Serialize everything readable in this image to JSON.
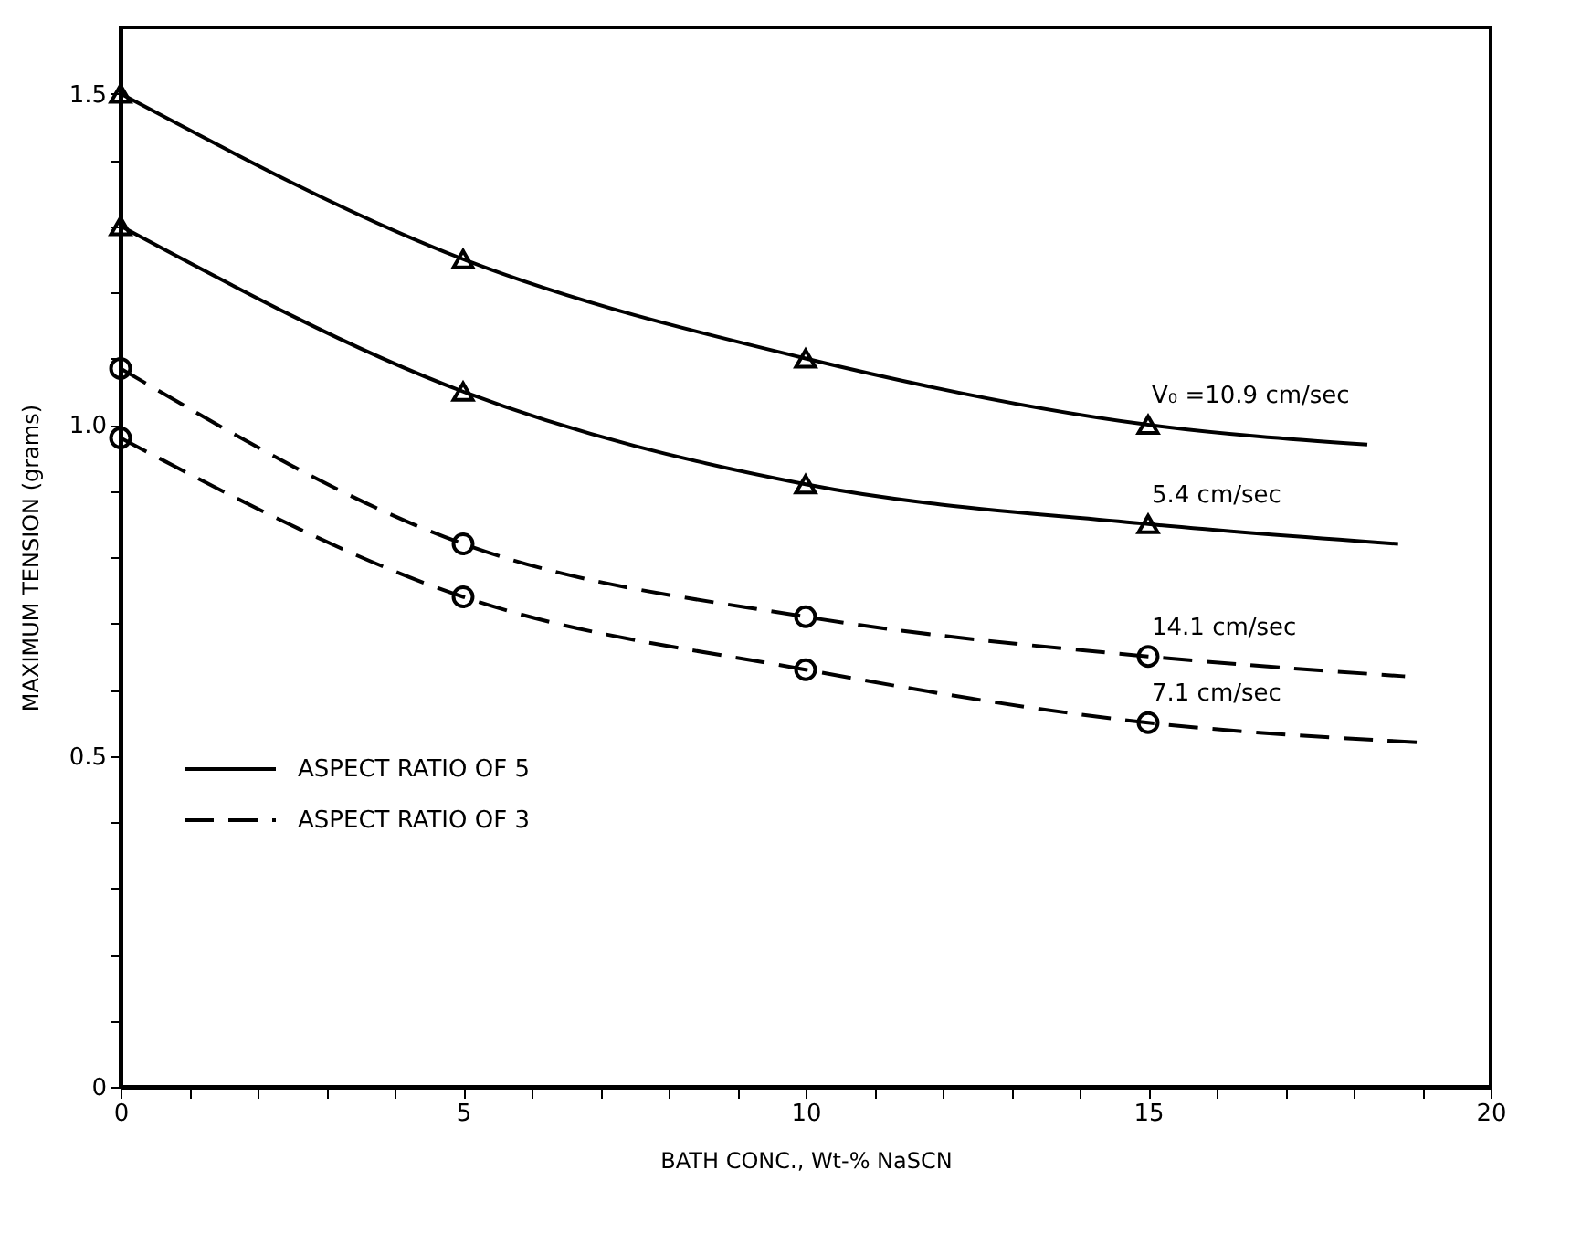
{
  "chart_data": {
    "type": "line",
    "xlabel": "BATH CONC., Wt-% NaSCN",
    "ylabel": "MAXIMUM TENSION (grams)",
    "xlim": [
      0,
      20
    ],
    "ylim": [
      0,
      1.6
    ],
    "xticks": [
      0,
      {
        "value": 1,
        "label": null
      },
      {
        "value": 2,
        "label": null
      },
      {
        "value": 3,
        "label": null
      },
      {
        "value": 4,
        "label": null
      },
      5,
      {
        "value": 6,
        "label": null
      },
      {
        "value": 7,
        "label": null
      },
      {
        "value": 8,
        "label": null
      },
      {
        "value": 9,
        "label": null
      },
      10,
      {
        "value": 11,
        "label": null
      },
      {
        "value": 12,
        "label": null
      },
      {
        "value": 13,
        "label": null
      },
      {
        "value": 14,
        "label": null
      },
      15,
      {
        "value": 16,
        "label": null
      },
      {
        "value": 17,
        "label": null
      },
      {
        "value": 18,
        "label": null
      },
      {
        "value": 19,
        "label": null
      },
      20
    ],
    "yticks": [
      0,
      {
        "value": 0.1,
        "label": null
      },
      {
        "value": 0.2,
        "label": null
      },
      {
        "value": 0.3,
        "label": null
      },
      {
        "value": 0.4,
        "label": null
      },
      0.5,
      {
        "value": 0.6,
        "label": null
      },
      {
        "value": 0.7,
        "label": null
      },
      {
        "value": 0.8,
        "label": null
      },
      {
        "value": 0.9,
        "label": null
      },
      {
        "value": 1.0,
        "label": "1.0"
      },
      {
        "value": 1.1,
        "label": null
      },
      {
        "value": 1.2,
        "label": null
      },
      {
        "value": 1.3,
        "label": null
      },
      {
        "value": 1.4,
        "label": null
      },
      1.5
    ],
    "grid": false,
    "legend": "left",
    "series": [
      {
        "name": "ASPECT RATIO OF 5",
        "line_style": "solid",
        "color": "#000000",
        "x": [
          0,
          5,
          10,
          15,
          18.2
        ],
        "values": [
          1.5,
          1.25,
          1.1,
          1.0,
          0.97
        ]
      },
      {
        "line_style": "solid",
        "color": "#000000",
        "x": [
          0,
          5,
          10,
          15,
          18.65
        ],
        "values": [
          1.3,
          1.05,
          0.91,
          0.85,
          0.82
        ]
      },
      {
        "name": "ASPECT RATIO OF 3",
        "line_style": "dashed",
        "color": "#000000",
        "x": [
          0,
          5,
          10,
          15,
          18.75
        ],
        "values": [
          1.085,
          0.82,
          0.71,
          0.65,
          0.62
        ]
      },
      {
        "line_style": "dashed",
        "color": "#000000",
        "x": [
          0,
          5,
          10,
          15,
          19.0
        ],
        "values": [
          0.98,
          0.74,
          0.63,
          0.55,
          0.52
        ]
      },
      {
        "type": "scatter",
        "marker": "triangle",
        "color": "#000000",
        "x": [
          0,
          5,
          10,
          15
        ],
        "values": [
          1.5,
          1.25,
          1.1,
          1.0
        ]
      },
      {
        "type": "scatter",
        "marker": "triangle",
        "color": "#000000",
        "x": [
          0,
          5,
          10,
          15
        ],
        "values": [
          1.3,
          1.05,
          0.91,
          0.85
        ]
      },
      {
        "type": "scatter",
        "marker": "circle",
        "color": "#000000",
        "x": [
          0,
          5,
          10,
          15
        ],
        "values": [
          1.085,
          0.82,
          0.71,
          0.65
        ]
      },
      {
        "type": "scatter",
        "marker": "circle",
        "color": "#000000",
        "x": [
          0,
          5,
          10,
          15
        ],
        "values": [
          0.98,
          0.74,
          0.63,
          0.55
        ]
      }
    ],
    "annotations": [
      "V₀ =10.9 cm/sec",
      "5.4 cm/sec",
      "14.1 cm/sec",
      "7.1 cm/sec"
    ]
  }
}
